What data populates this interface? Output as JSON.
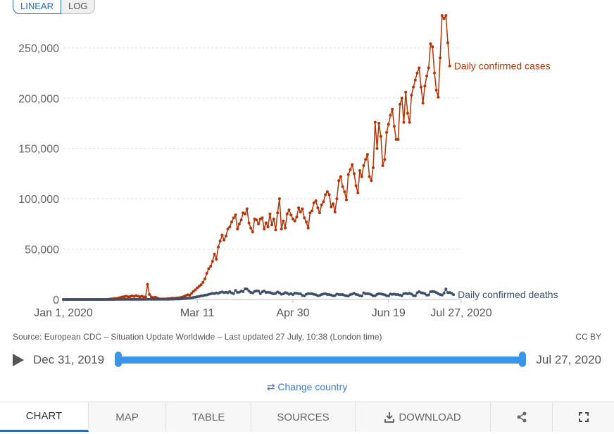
{
  "scale_toggle": {
    "linear": "LINEAR",
    "log": "LOG"
  },
  "colors": {
    "cases": "#b13507",
    "deaths": "#3f4f69",
    "accent": "#3a95e8",
    "tab_active": "#2d6aa8"
  },
  "chart_data": {
    "type": "line",
    "x_axis": {
      "ticks": [
        "Jan 1, 2020",
        "Mar 11",
        "Apr 30",
        "Jun 19",
        "Jul 27, 2020"
      ],
      "range": [
        "2020-01-01",
        "2020-07-27"
      ]
    },
    "y_axis": {
      "ticks": [
        "0",
        "50,000",
        "100,000",
        "150,000",
        "200,000",
        "250,000"
      ],
      "range": [
        0,
        280000
      ]
    },
    "grid": "horizontal dashed",
    "series": [
      {
        "name": "Daily confirmed cases",
        "start": "2020-01-01",
        "values": [
          0,
          0,
          0,
          0,
          0,
          0,
          0,
          0,
          0,
          0,
          0,
          0,
          0,
          0,
          0,
          0,
          0,
          0,
          0,
          0,
          0,
          0,
          0,
          50,
          300,
          500,
          700,
          900,
          1000,
          1500,
          2000,
          2500,
          2800,
          3200,
          2500,
          3000,
          3500,
          3000,
          3700,
          3200,
          2600,
          3200,
          2500,
          2400,
          15000,
          5000,
          2500,
          1800,
          2200,
          1500,
          600,
          400,
          500,
          400,
          600,
          800,
          1000,
          1200,
          1100,
          1300,
          1600,
          1800,
          2300,
          2800,
          3800,
          4600,
          4200,
          6000,
          8000,
          9500,
          11500,
          13000,
          14500,
          17000,
          20500,
          26000,
          30500,
          33000,
          38000,
          45000,
          40000,
          52000,
          58000,
          64000,
          59000,
          63000,
          70000,
          72000,
          77000,
          81000,
          84000,
          70000,
          75000,
          79000,
          86000,
          85000,
          90000,
          76000,
          71000,
          67000,
          80000,
          79000,
          75000,
          80000,
          81000,
          70000,
          76000,
          72000,
          85000,
          74000,
          80000,
          69000,
          86000,
          100000,
          70000,
          78000,
          71000,
          85000,
          89000,
          84000,
          80000,
          78000,
          82000,
          91000,
          87000,
          90000,
          81000,
          77000,
          71000,
          86000,
          88000,
          96000,
          98000,
          91000,
          86000,
          94000,
          97000,
          104000,
          107000,
          104000,
          92000,
          95000,
          87000,
          100000,
          118000,
          122000,
          112000,
          107000,
          99000,
          124000,
          129000,
          134000,
          125000,
          113000,
          106000,
          128000,
          122000,
          133000,
          139000,
          144000,
          122000,
          118000,
          131000,
          176000,
          150000,
          175000,
          162000,
          133000,
          139000,
          166000,
          174000,
          183000,
          189000,
          172000,
          159000,
          159000,
          194000,
          200000,
          176000,
          206000,
          185000,
          176000,
          203000,
          211000,
          218000,
          225000,
          230000,
          211000,
          195000,
          212000,
          222000,
          230000,
          254000,
          251000,
          225000,
          208000,
          201000,
          240000,
          282000,
          279000,
          282000,
          255000,
          232000
        ]
      },
      {
        "name": "Daily confirmed deaths",
        "start": "2020-01-01",
        "values": [
          0,
          0,
          0,
          0,
          0,
          0,
          0,
          0,
          0,
          0,
          0,
          0,
          0,
          0,
          0,
          0,
          0,
          0,
          0,
          0,
          0,
          0,
          0,
          0,
          10,
          20,
          25,
          30,
          40,
          45,
          55,
          60,
          65,
          70,
          75,
          70,
          80,
          85,
          90,
          95,
          100,
          105,
          100,
          110,
          120,
          115,
          110,
          100,
          115,
          120,
          125,
          130,
          140,
          150,
          200,
          220,
          250,
          300,
          350,
          400,
          450,
          500,
          650,
          750,
          900,
          1100,
          1300,
          1600,
          2000,
          2300,
          2700,
          3000,
          3500,
          3700,
          4200,
          4500,
          5100,
          5500,
          6000,
          5800,
          6500,
          6000,
          7000,
          7400,
          6800,
          7200,
          6600,
          7800,
          6500,
          5800,
          8900,
          7000,
          7200,
          8200,
          7800,
          10500,
          10200,
          8400,
          7000,
          6500,
          8000,
          8500,
          8300,
          5800,
          7600,
          8400,
          6900,
          7200,
          6800,
          6100,
          5500,
          6000,
          7400,
          6600,
          5200,
          5500,
          6800,
          6100,
          5200,
          5800,
          4800,
          6300,
          6000,
          5700,
          5500,
          3900,
          3600,
          5200,
          5800,
          5700,
          5600,
          5100,
          4600,
          3700,
          3900,
          4900,
          5400,
          5700,
          4900,
          4900,
          4400,
          3600,
          3800,
          5300,
          5000,
          4800,
          4900,
          4000,
          3600,
          3400,
          4700,
          5300,
          6100,
          5000,
          4600,
          3700,
          3400,
          6600,
          5700,
          5700,
          5500,
          4700,
          3600,
          3700,
          5100,
          5600,
          5500,
          5100,
          4600,
          3700,
          3500,
          5300,
          5100,
          5300,
          4900,
          4800,
          4300,
          3700,
          5700,
          6000,
          5600,
          6000,
          5300,
          3800,
          3600,
          6600,
          7700,
          6700,
          6300,
          5800,
          4300,
          4500,
          7600,
          7900,
          7600,
          6800,
          5700,
          4800,
          4400,
          6200,
          10300,
          6800,
          6800,
          6100,
          4800
        ]
      }
    ],
    "series_labels_at_end": true
  },
  "source": "Source: European CDC – Situation Update Worldwide – Last updated 27 July, 10:38 (London time)",
  "license": "CC BY",
  "timeline": {
    "start": "Dec 31, 2019",
    "end": "Jul 27, 2020"
  },
  "change_country": "Change country",
  "tabs": [
    {
      "label": "CHART",
      "active": true
    },
    {
      "label": "MAP"
    },
    {
      "label": "TABLE"
    },
    {
      "label": "SOURCES"
    },
    {
      "label": "DOWNLOAD"
    }
  ]
}
